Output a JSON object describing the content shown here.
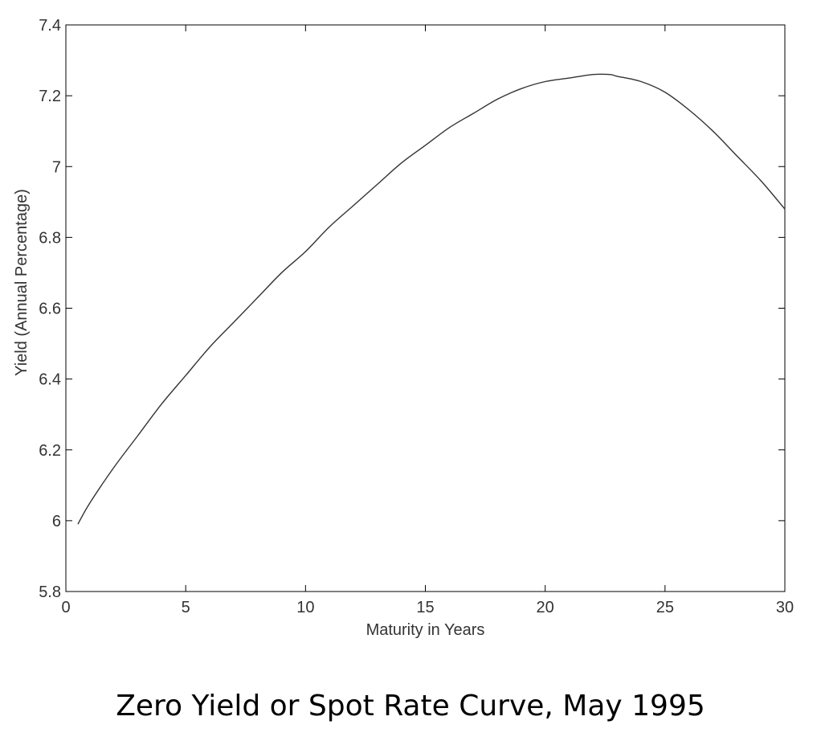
{
  "caption": "Zero Yield or Spot Rate Curve, May 1995",
  "chart_data": {
    "type": "line",
    "title": "",
    "xlabel": "Maturity in Years",
    "ylabel": "Yield (Annual Percentage)",
    "xlim": [
      0,
      30
    ],
    "ylim": [
      5.8,
      7.4
    ],
    "xticks": [
      0,
      5,
      10,
      15,
      20,
      25,
      30
    ],
    "yticks": [
      5.8,
      6,
      6.2,
      6.4,
      6.6,
      6.8,
      7,
      7.2,
      7.4
    ],
    "xtick_labels": [
      "0",
      "5",
      "10",
      "15",
      "20",
      "25",
      "30"
    ],
    "ytick_labels": [
      "5.8",
      "6",
      "6.2",
      "6.4",
      "6.6",
      "6.8",
      "7",
      "7.2",
      "7.4"
    ],
    "grid": false,
    "line_color": "#333333",
    "series": [
      {
        "x": [
          0.5,
          1,
          2,
          3,
          4,
          5,
          6,
          7,
          8,
          9,
          10,
          11,
          12,
          13,
          14,
          15,
          16,
          17,
          18,
          19,
          20,
          21,
          22,
          22.7,
          23,
          24,
          25,
          26,
          27,
          28,
          29,
          30
        ],
        "values": [
          5.99,
          6.05,
          6.15,
          6.24,
          6.33,
          6.41,
          6.49,
          6.56,
          6.63,
          6.7,
          6.76,
          6.83,
          6.89,
          6.95,
          7.01,
          7.06,
          7.11,
          7.15,
          7.19,
          7.22,
          7.24,
          7.25,
          7.26,
          7.26,
          7.255,
          7.24,
          7.21,
          7.16,
          7.1,
          7.03,
          6.96,
          6.88
        ]
      }
    ]
  }
}
